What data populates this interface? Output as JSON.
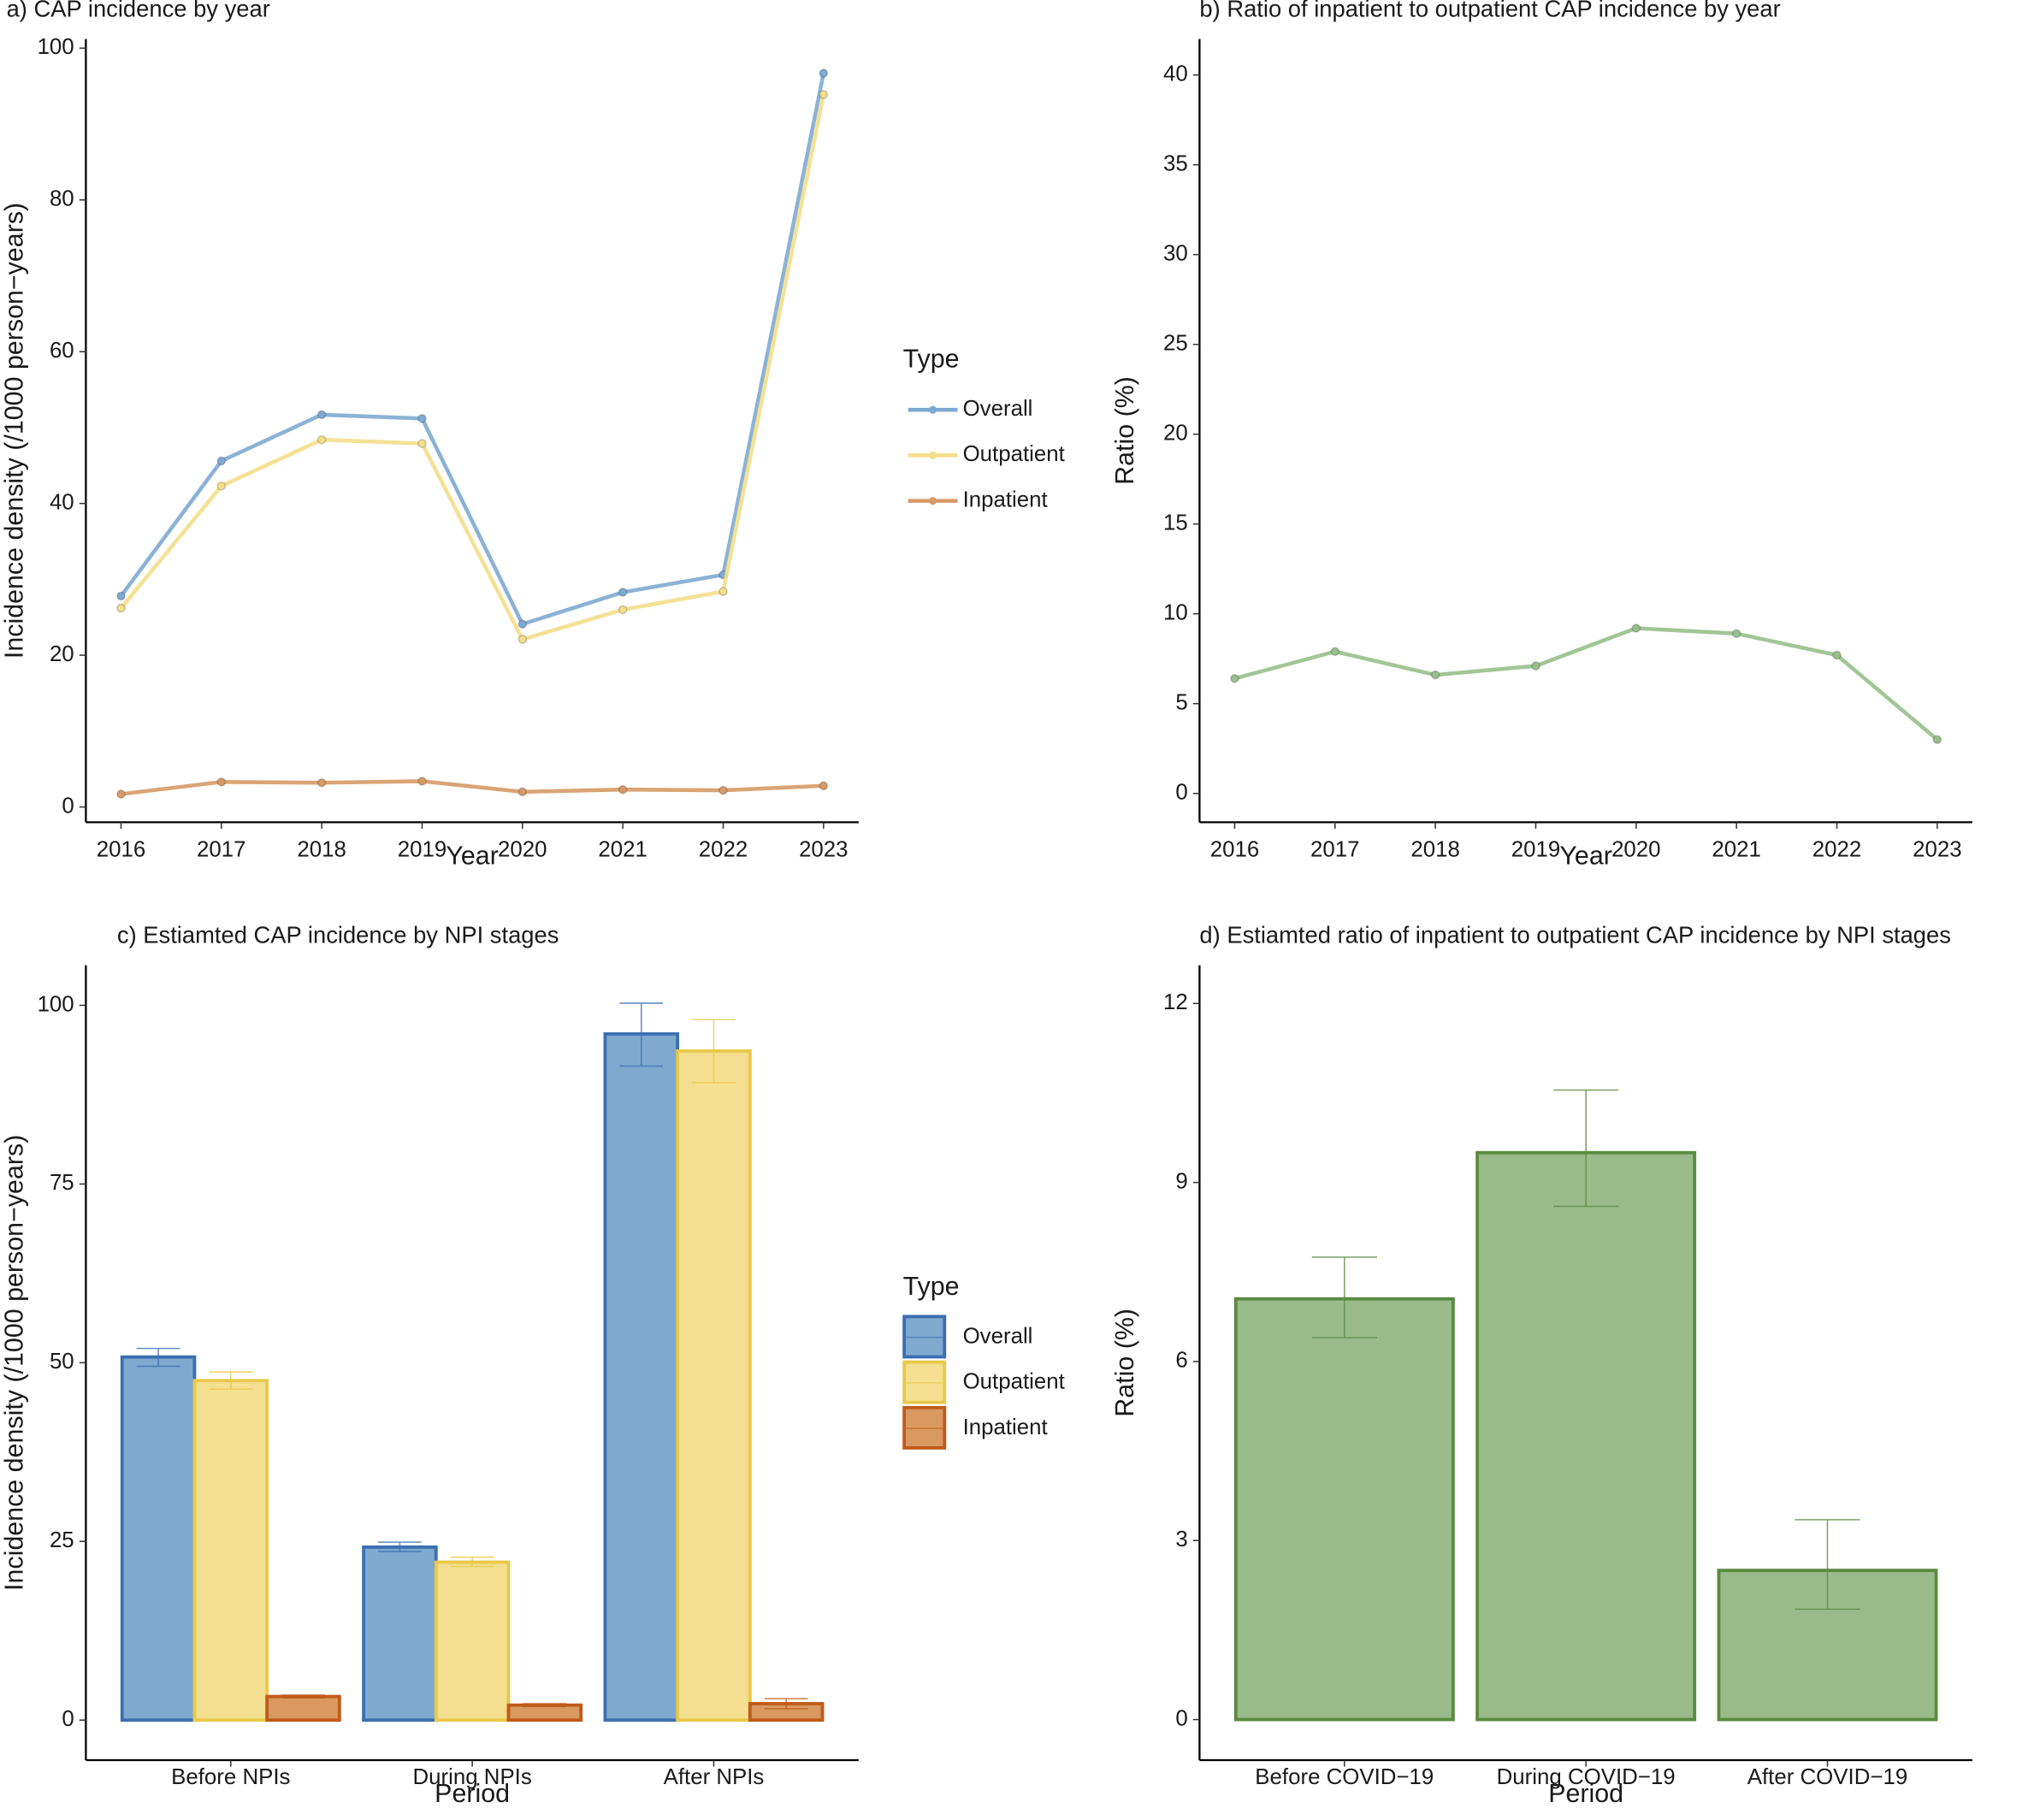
{
  "chart_data": [
    {
      "type": "line",
      "title": "a) CAP incidence by year",
      "x_label": "Year",
      "y_label": "Incidence density (/1000 person−years)",
      "x": [
        2016,
        2017,
        2018,
        2019,
        2020,
        2021,
        2022,
        2023
      ],
      "xlim": [
        2015.65,
        2023.35
      ],
      "xticks": [
        2016,
        2017,
        2018,
        2019,
        2020,
        2021,
        2022,
        2023
      ],
      "ylim": [
        -2,
        101.2
      ],
      "yticks": [
        0,
        20,
        40,
        60,
        80,
        100
      ],
      "legend_title": "Type",
      "series": [
        {
          "name": "Overall",
          "color": "#7eaad2",
          "values": [
            27.8,
            45.6,
            51.7,
            51.2,
            24.1,
            28.3,
            30.6,
            96.7
          ]
        },
        {
          "name": "Outpatient",
          "color": "#f4de8a",
          "values": [
            26.2,
            42.3,
            48.4,
            47.9,
            22.1,
            26.0,
            28.4,
            93.9
          ]
        },
        {
          "name": "Inpatient",
          "color": "#d69a66",
          "values": [
            1.7,
            3.3,
            3.2,
            3.4,
            2.0,
            2.3,
            2.2,
            2.8
          ]
        }
      ]
    },
    {
      "type": "line",
      "title": "b) Ratio of inpatient to outpatient CAP incidence by year",
      "x_label": "Year",
      "y_label": "Ratio (%)",
      "x": [
        2016,
        2017,
        2018,
        2019,
        2020,
        2021,
        2022,
        2023
      ],
      "xlim": [
        2015.65,
        2023.35
      ],
      "xticks": [
        2016,
        2017,
        2018,
        2019,
        2020,
        2021,
        2022,
        2023
      ],
      "ylim": [
        -1.6,
        42
      ],
      "yticks": [
        0,
        5,
        10,
        15,
        20,
        25,
        30,
        35,
        40
      ],
      "series": [
        {
          "color": "#98bf8b",
          "values": [
            6.4,
            7.9,
            6.6,
            7.1,
            9.2,
            8.9,
            7.7,
            3.0
          ]
        }
      ]
    },
    {
      "type": "bar",
      "title": "c) Estiamted CAP incidence by NPI stages",
      "x_label": "Period",
      "y_label": "Incidence density (/1000 person−years)",
      "categories": [
        "Before NPIs",
        "During NPIs",
        "After NPIs"
      ],
      "ylim": [
        -5.6,
        105.6
      ],
      "yticks": [
        0,
        25,
        50,
        75,
        100
      ],
      "legend_title": "Type",
      "series": [
        {
          "name": "Overall",
          "color": "#80a9d0",
          "edge": "#3b6fb0",
          "values": [
            50.8,
            24.2,
            96.0
          ],
          "lower": [
            49.5,
            23.6,
            91.5
          ],
          "upper": [
            52.0,
            24.9,
            100.3
          ]
        },
        {
          "name": "Outpatient",
          "color": "#f3df8f",
          "edge": "#e9c84a",
          "values": [
            47.5,
            22.1,
            93.6
          ],
          "lower": [
            46.3,
            21.5,
            89.2
          ],
          "upper": [
            48.7,
            22.8,
            98.0
          ]
        },
        {
          "name": "Inpatient",
          "color": "#d9995f",
          "edge": "#c05a1a",
          "values": [
            3.3,
            2.1,
            2.3
          ],
          "lower": [
            3.1,
            1.9,
            1.6
          ],
          "upper": [
            3.5,
            2.3,
            3.0
          ]
        }
      ]
    },
    {
      "type": "bar",
      "title": "d) Estiamted ratio of inpatient to outpatient CAP incidence by NPI stages",
      "x_label": "Period",
      "y_label": "Ratio (%)",
      "categories": [
        "Before COVID−19",
        "During COVID−19",
        "After COVID−19"
      ],
      "ylim": [
        -0.68,
        12.64
      ],
      "yticks": [
        0,
        3,
        6,
        9,
        12
      ],
      "series": [
        {
          "color": "#99bb8a",
          "edge": "#5a8a3f",
          "values": [
            7.05,
            9.5,
            2.5
          ],
          "lower": [
            6.4,
            8.6,
            1.85
          ],
          "upper": [
            7.75,
            10.55,
            3.35
          ]
        }
      ]
    }
  ]
}
